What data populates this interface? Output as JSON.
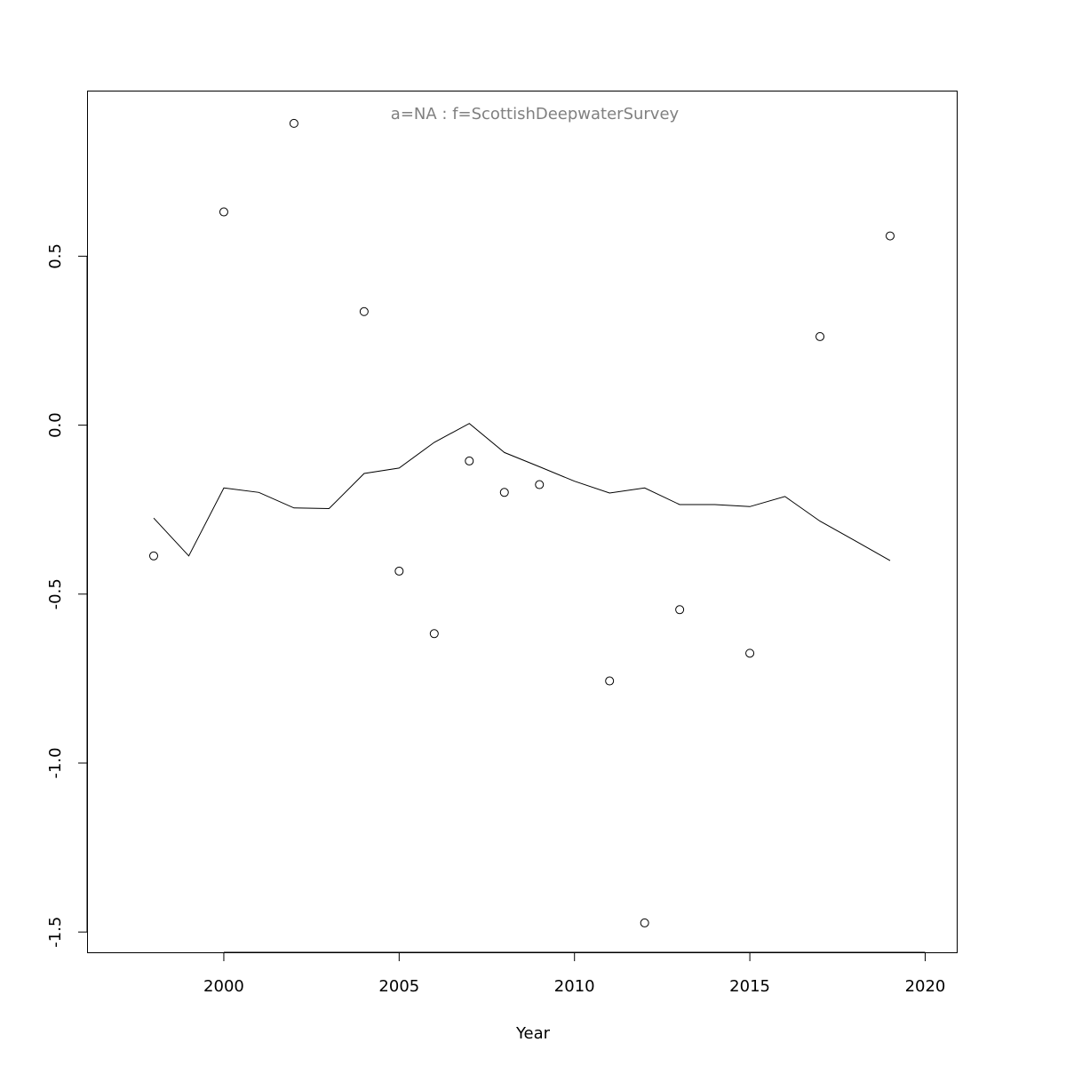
{
  "chart_data": {
    "type": "scatter",
    "title": "a=NA  :  f=ScottishDeepwaterSurvey",
    "xlabel": "Year",
    "ylabel": "",
    "xlim": [
      1996.1,
      2020.9
    ],
    "ylim": [
      -1.56,
      0.99
    ],
    "x_ticks": [
      2000,
      2005,
      2010,
      2015,
      2020
    ],
    "x_tick_labels": [
      "2000",
      "2005",
      "2010",
      "2015",
      "2020"
    ],
    "y_ticks": [
      -1.5,
      -1.0,
      -0.5,
      0.0,
      0.5
    ],
    "y_tick_labels": [
      "-1.5",
      "-1.0",
      "-0.5",
      "0.0",
      "0.5"
    ],
    "grid": false,
    "points": {
      "x": [
        1998,
        2000,
        2002,
        2004,
        2005,
        2006,
        2007,
        2008,
        2009,
        2011,
        2012,
        2013,
        2015,
        2017,
        2019
      ],
      "y": [
        -0.387,
        0.631,
        0.893,
        0.336,
        -0.432,
        -0.617,
        -0.106,
        -0.199,
        -0.176,
        -0.757,
        -1.473,
        -0.546,
        -0.675,
        0.262,
        0.56
      ]
    },
    "line": {
      "x": [
        1998,
        1999,
        2000,
        2001,
        2002,
        2003,
        2004,
        2005,
        2006,
        2007,
        2008,
        2009,
        2010,
        2011,
        2012,
        2013,
        2014,
        2015,
        2016,
        2017,
        2018,
        2019
      ],
      "y": [
        -0.275,
        -0.387,
        -0.186,
        -0.199,
        -0.245,
        -0.247,
        -0.143,
        -0.127,
        -0.051,
        0.005,
        -0.081,
        -0.123,
        -0.166,
        -0.201,
        -0.186,
        -0.235,
        -0.235,
        -0.241,
        -0.211,
        -0.284,
        -0.342,
        -0.401
      ]
    },
    "colors": {
      "axes": "#000000",
      "title": "#808080",
      "marks": "#000000"
    }
  }
}
